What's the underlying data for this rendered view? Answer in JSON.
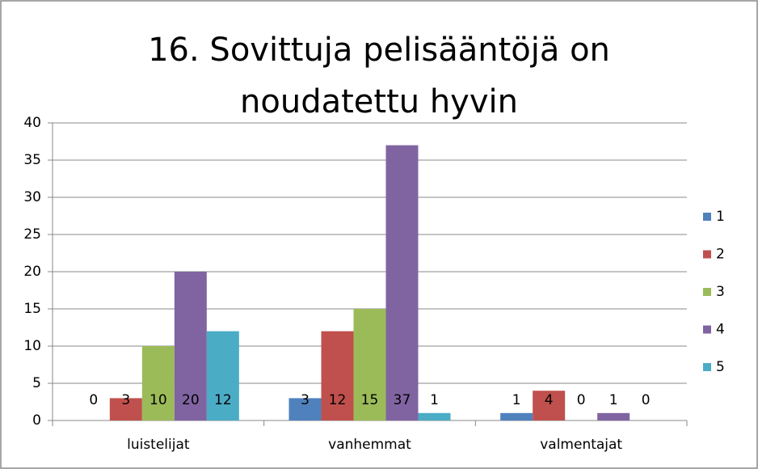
{
  "chart_data": {
    "type": "bar",
    "title": "16. Sovittuja pelisääntöjä on noudatettu hyvin",
    "categories": [
      "luistelijat",
      "vanhemmat",
      "valmentajat"
    ],
    "series": [
      {
        "name": "1",
        "color": "#4f81bd",
        "values": [
          0,
          3,
          1
        ]
      },
      {
        "name": "2",
        "color": "#c0504d",
        "values": [
          3,
          12,
          4
        ]
      },
      {
        "name": "3",
        "color": "#9bbb59",
        "values": [
          10,
          15,
          0
        ]
      },
      {
        "name": "4",
        "color": "#8064a2",
        "values": [
          20,
          37,
          1
        ]
      },
      {
        "name": "5",
        "color": "#4bacc6",
        "values": [
          12,
          1,
          0
        ]
      }
    ],
    "ylim": [
      0,
      40
    ],
    "yticks": [
      0,
      5,
      10,
      15,
      20,
      25,
      30,
      35,
      40
    ],
    "grid": true,
    "legend": "right"
  }
}
